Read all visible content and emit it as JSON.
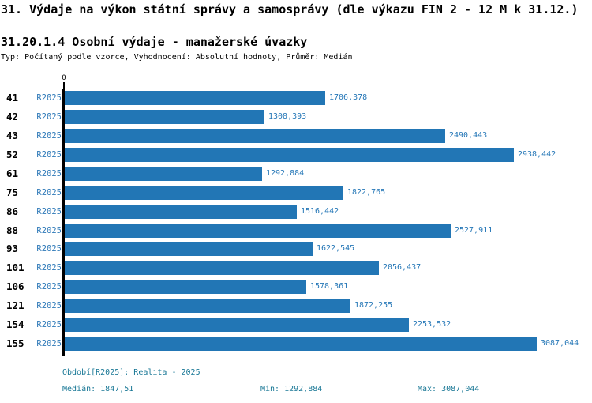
{
  "header": {
    "title": "31. Výdaje na výkon státní správy a samosprávy (dle výkazu FIN 2 - 12 M k 31.12.)",
    "subtitle": "31.20.1.4 Osobní výdaje - manažerské úvazky",
    "meta": "Typ: Počítaný podle vzorce, Vyhodnocení: Absolutní hodnoty, Průměr: Medián"
  },
  "chart_data": {
    "type": "bar",
    "orientation": "horizontal",
    "title": "31.20.1.4 Osobní výdaje - manažerské úvazky",
    "categories": [
      "41",
      "42",
      "43",
      "52",
      "61",
      "75",
      "86",
      "88",
      "93",
      "101",
      "106",
      "121",
      "154",
      "155"
    ],
    "series": [
      {
        "name": "R2025",
        "values": [
          1706.378,
          1308.393,
          2490.443,
          2938.442,
          1292.884,
          1822.765,
          1516.442,
          2527.911,
          1622.545,
          2056.437,
          1578.361,
          1872.255,
          2253.532,
          3087.044
        ]
      }
    ],
    "value_labels": [
      "1706,378",
      "1308,393",
      "2490,443",
      "2938,442",
      "1292,884",
      "1822,765",
      "1516,442",
      "2527,911",
      "1622,545",
      "2056,437",
      "1578,361",
      "1872,255",
      "2253,532",
      "3087,044"
    ],
    "series_label": "R2025",
    "zero_tick_label": "0",
    "xlim": [
      0,
      3130
    ],
    "median_value": 1847.51,
    "grid": false,
    "legend_position": "none",
    "bar_color": "#2276b5",
    "median_line_color": "#2577b7",
    "axis_color": "#000000"
  },
  "footer": {
    "period": "Období[R2025]: Realita - 2025",
    "median": "Medián: 1847,51",
    "min": "Min: 1292,884",
    "max": "Max: 3087,044"
  }
}
